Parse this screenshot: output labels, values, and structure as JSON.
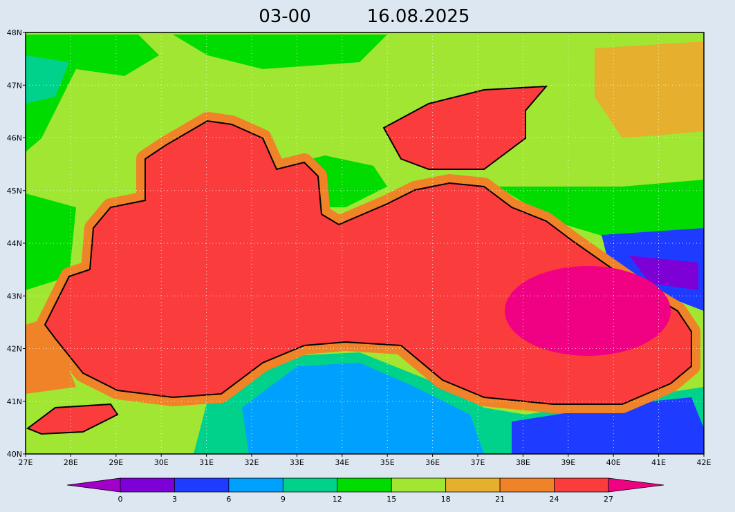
{
  "map": {
    "time": "03-00",
    "date": "16.08.2025",
    "lon_range": [
      27,
      42
    ],
    "lat_range": [
      40,
      48
    ],
    "lon_ticks": [
      {
        "value": 27,
        "label": "27E"
      },
      {
        "value": 28,
        "label": "28E"
      },
      {
        "value": 29,
        "label": "29E"
      },
      {
        "value": 30,
        "label": "30E"
      },
      {
        "value": 31,
        "label": "31E"
      },
      {
        "value": 32,
        "label": "32E"
      },
      {
        "value": 33,
        "label": "33E"
      },
      {
        "value": 34,
        "label": "34E"
      },
      {
        "value": 35,
        "label": "35E"
      },
      {
        "value": 36,
        "label": "36E"
      },
      {
        "value": 37,
        "label": "37E"
      },
      {
        "value": 38,
        "label": "38E"
      },
      {
        "value": 39,
        "label": "39E"
      },
      {
        "value": 40,
        "label": "40E"
      },
      {
        "value": 41,
        "label": "41E"
      },
      {
        "value": 42,
        "label": "42E"
      }
    ],
    "lat_ticks": [
      {
        "value": 40,
        "label": "40N"
      },
      {
        "value": 41,
        "label": "41N"
      },
      {
        "value": 42,
        "label": "42N"
      },
      {
        "value": 43,
        "label": "43N"
      },
      {
        "value": 44,
        "label": "44N"
      },
      {
        "value": 45,
        "label": "45N"
      },
      {
        "value": 46,
        "label": "46N"
      },
      {
        "value": 47,
        "label": "47N"
      },
      {
        "value": 48,
        "label": "48N"
      }
    ],
    "grid": true,
    "colorbar": {
      "levels": [
        0,
        3,
        6,
        9,
        12,
        15,
        18,
        21,
        24,
        27
      ],
      "colors": [
        "#a000c8",
        "#7d00d7",
        "#1e3cff",
        "#00a0ff",
        "#00d28c",
        "#00dc00",
        "#a0e632",
        "#e6af2d",
        "#f08228",
        "#fa3c3c",
        "#f00082"
      ]
    }
  }
}
